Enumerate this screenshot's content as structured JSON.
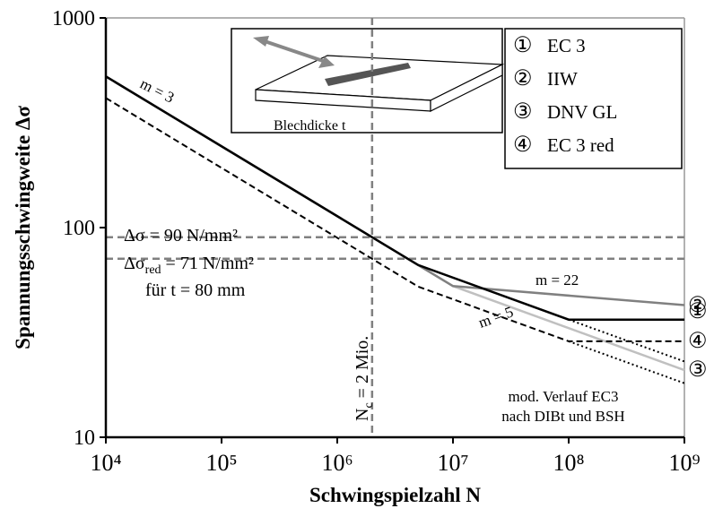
{
  "chart_data": {
    "type": "line",
    "log_x": true,
    "log_y": true,
    "x_label": "Schwingspielzahl N",
    "y_label": "Spannungsschwingweite  Δσ",
    "xlim": [
      10000,
      1000000000
    ],
    "ylim": [
      10,
      1000
    ],
    "xticks": [
      {
        "value": 10000,
        "label": "10⁴"
      },
      {
        "value": 100000,
        "label": "10⁵"
      },
      {
        "value": 1000000,
        "label": "10⁶"
      },
      {
        "value": 10000000,
        "label": "10⁷"
      },
      {
        "value": 100000000,
        "label": "10⁸"
      },
      {
        "value": 1000000000,
        "label": "10⁹"
      }
    ],
    "yticks": [
      10,
      100,
      1000
    ],
    "series": [
      {
        "name": "EC 3",
        "symbol": "①",
        "color": "#000000",
        "style": "solid",
        "x": [
          10000,
          5000000,
          100000000,
          1000000000
        ],
        "values": [
          526,
          66.3,
          36.4,
          36.4
        ]
      },
      {
        "name": "IIW",
        "symbol": "②",
        "color": "#808080",
        "style": "solid",
        "x": [
          10000,
          10000000,
          1000000000
        ],
        "values": [
          526,
          52.6,
          42.7
        ]
      },
      {
        "name": "DNV GL",
        "symbol": "③",
        "color": "#c0c0c0",
        "style": "solid",
        "x": [
          10000,
          10000000,
          1000000000
        ],
        "values": [
          526,
          52.6,
          20.9
        ]
      },
      {
        "name": "EC 3 red",
        "symbol": "④",
        "color": "#000000",
        "style": "dashed",
        "x": [
          10000,
          5000000,
          100000000,
          1000000000
        ],
        "values": [
          415,
          52.3,
          28.7,
          28.7
        ]
      },
      {
        "color": "#000000",
        "style": "dotted",
        "x": [
          100000000,
          1000000000
        ],
        "values": [
          36.4,
          23
        ]
      },
      {
        "color": "#000000",
        "style": "dotted",
        "x": [
          100000000,
          1000000000
        ],
        "values": [
          28.7,
          18.1
        ]
      }
    ],
    "reference_lines": [
      {
        "axis": "y",
        "value": 90,
        "color": "#808080"
      },
      {
        "axis": "y",
        "value": 71,
        "color": "#808080"
      },
      {
        "axis": "x",
        "value": 2000000,
        "color": "#808080"
      }
    ],
    "annotations": {
      "slope_3": "m = 3",
      "slope_22": "m = 22",
      "slope_5": "m = 5",
      "nc": {
        "main": "N",
        "sub": "c",
        "rest": " = 2 Mio."
      },
      "delta_sigma": "Δσ = 90 N/mm²",
      "delta_sigma_red": {
        "main": "Δσ",
        "sub": "red",
        "rest": " = 71 N/mm²"
      },
      "thickness": "für t = 80 mm",
      "mod_1": "mod. Verlauf EC3",
      "mod_2": "nach DIBt und BSH",
      "inset": "Blechdicke  t"
    }
  }
}
